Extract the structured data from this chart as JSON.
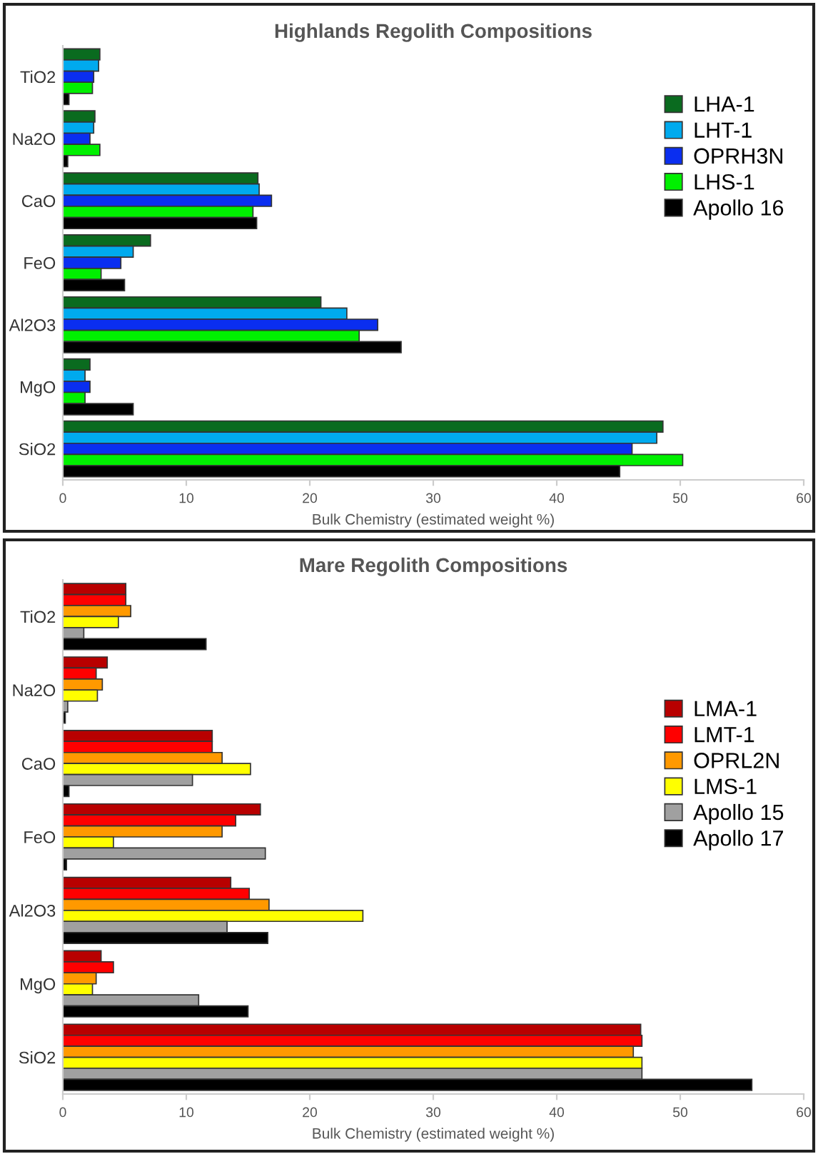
{
  "chart_data": [
    {
      "type": "bar",
      "orientation": "horizontal",
      "title": "Highlands Regolith Compositions",
      "xlabel": "Bulk Chemistry (estimated weight %)",
      "categories": [
        "TiO2",
        "Na2O",
        "CaO",
        "FeO",
        "Al2O3",
        "MgO",
        "SiO2"
      ],
      "xlim": [
        0,
        60
      ],
      "xticks": [
        0,
        10,
        20,
        30,
        40,
        50,
        60
      ],
      "legend": "top right",
      "grid": false,
      "series": [
        {
          "name": "LHA-1",
          "color": "#0a6b1f",
          "values": [
            3.0,
            2.6,
            15.8,
            7.1,
            20.9,
            2.2,
            48.6
          ]
        },
        {
          "name": "LHT-1",
          "color": "#00aaee",
          "values": [
            2.9,
            2.5,
            15.9,
            5.7,
            23.0,
            1.8,
            48.1
          ]
        },
        {
          "name": "OPRH3N",
          "color": "#0a2ef0",
          "values": [
            2.5,
            2.2,
            16.9,
            4.7,
            25.5,
            2.2,
            46.1
          ]
        },
        {
          "name": "LHS-1",
          "color": "#00f000",
          "values": [
            2.4,
            3.0,
            15.4,
            3.1,
            24.0,
            1.8,
            50.2
          ]
        },
        {
          "name": "Apollo 16",
          "color": "#000000",
          "values": [
            0.5,
            0.4,
            15.7,
            5.0,
            27.4,
            5.7,
            45.1
          ]
        }
      ]
    },
    {
      "type": "bar",
      "orientation": "horizontal",
      "title": "Mare Regolith Compositions",
      "xlabel": "Bulk Chemistry (estimated weight %)",
      "categories": [
        "TiO2",
        "Na2O",
        "CaO",
        "FeO",
        "Al2O3",
        "MgO",
        "SiO2"
      ],
      "xlim": [
        0,
        60
      ],
      "xticks": [
        0,
        10,
        20,
        30,
        40,
        50,
        60
      ],
      "legend": "right",
      "grid": false,
      "series": [
        {
          "name": "LMA-1",
          "color": "#b80000",
          "values": [
            5.1,
            3.6,
            12.1,
            16.0,
            13.6,
            3.1,
            46.8
          ]
        },
        {
          "name": "LMT-1",
          "color": "#ff0000",
          "values": [
            5.1,
            2.7,
            12.1,
            14.0,
            15.1,
            4.1,
            46.9
          ]
        },
        {
          "name": "OPRL2N",
          "color": "#ff9900",
          "values": [
            5.5,
            3.2,
            12.9,
            12.9,
            16.7,
            2.7,
            46.2
          ]
        },
        {
          "name": "LMS-1",
          "color": "#ffff00",
          "values": [
            4.5,
            2.8,
            15.2,
            4.1,
            24.3,
            2.4,
            46.9
          ]
        },
        {
          "name": "Apollo 15",
          "color": "#a0a0a0",
          "values": [
            1.7,
            0.4,
            10.5,
            16.4,
            13.3,
            11.0,
            46.9
          ]
        },
        {
          "name": "Apollo 17",
          "color": "#000000",
          "values": [
            11.6,
            0.2,
            0.5,
            0.3,
            16.6,
            15.0,
            55.8
          ]
        }
      ]
    }
  ]
}
